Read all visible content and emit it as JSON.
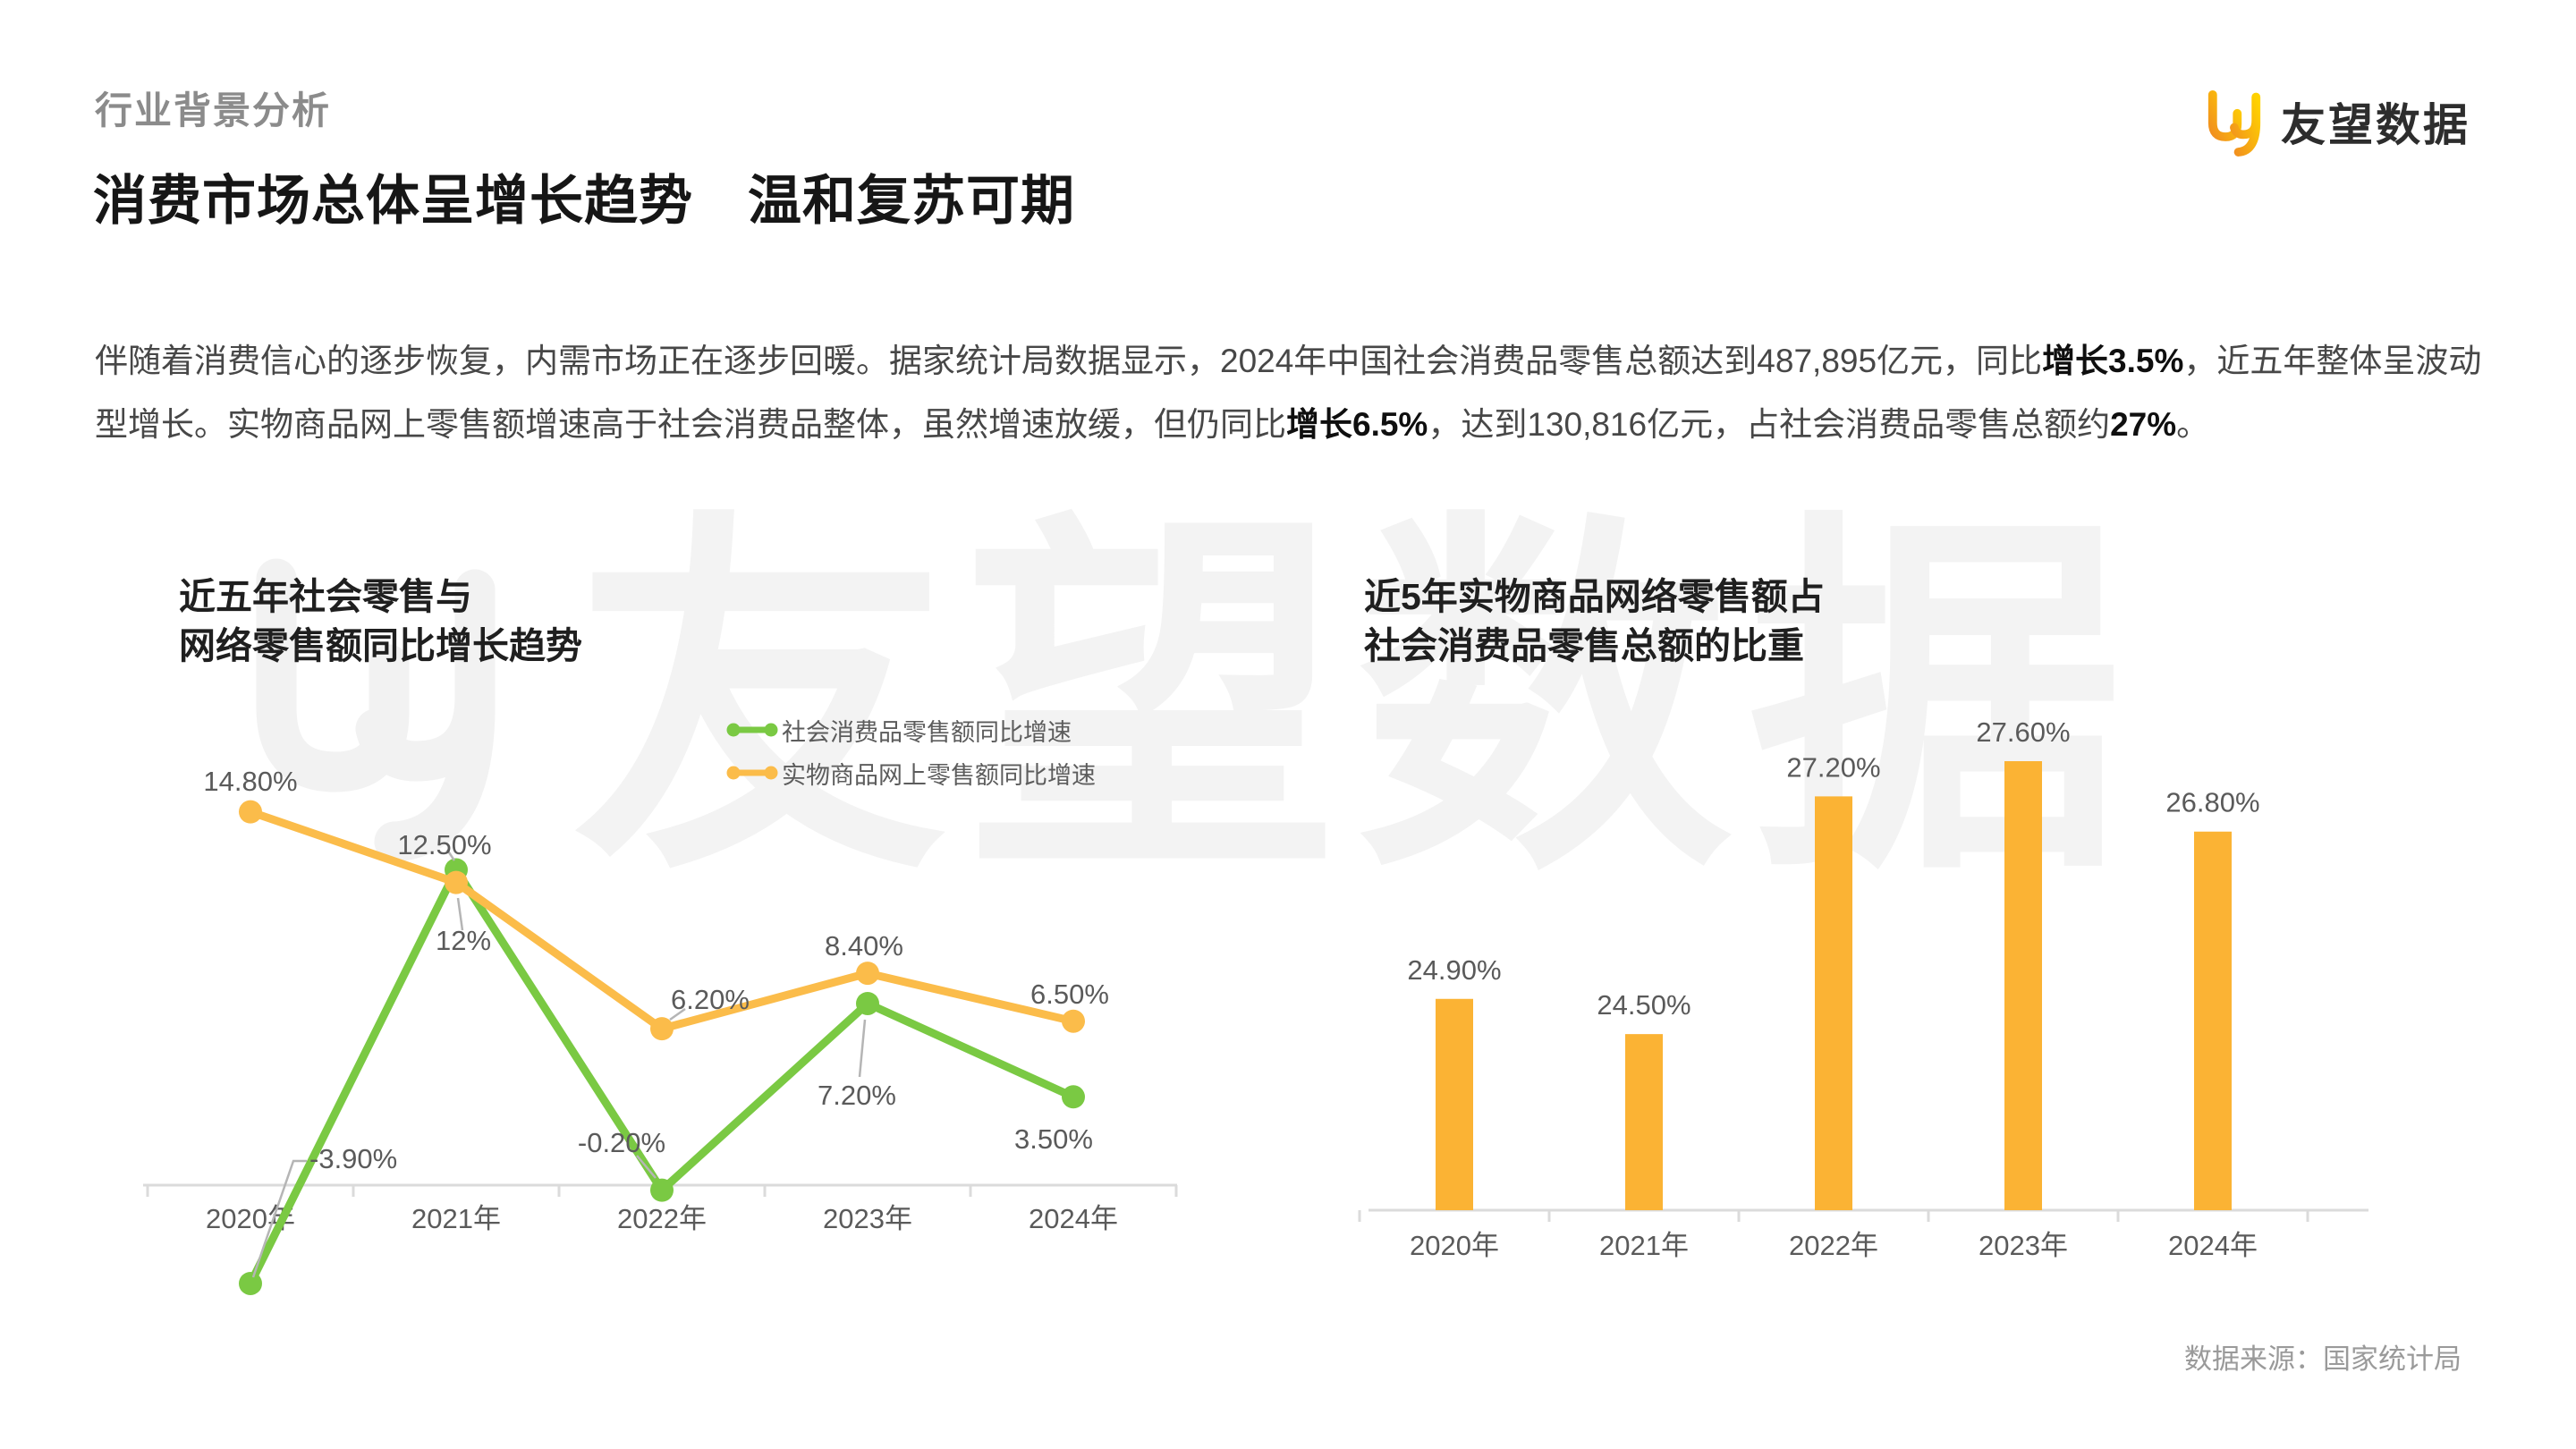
{
  "page": {
    "section_label": "行业背景分析",
    "title": "消费市场总体呈增长趋势　温和复苏可期",
    "source_note": "数据来源：国家统计局"
  },
  "logo": {
    "text": "友望数据"
  },
  "watermark": {
    "text": "友望数据"
  },
  "paragraph": {
    "segments": [
      {
        "text": "伴随着消费信心的逐步恢复，内需市场正在逐步回暖。据家统计局数据显示，2024年中国社会消费品零售总额达到487,895亿元，同比",
        "bold": false
      },
      {
        "text": "增长3.5%",
        "bold": true
      },
      {
        "text": "，近五年整体呈波动型增长。实物商品网上零售额增速高于社会消费品整体，虽然增速放缓，但仍同比",
        "bold": false
      },
      {
        "text": "增长6.5%",
        "bold": true
      },
      {
        "text": "，达到130,816亿元，占社会消费品零售总额约",
        "bold": false
      },
      {
        "text": "27%",
        "bold": true
      },
      {
        "text": "。",
        "bold": false
      }
    ]
  },
  "colors": {
    "green_series": "#7AC943",
    "orange_series": "#FBBC4A",
    "bar_fill": "#FBB334",
    "axis": "#dbdbdb",
    "leader_line": "#b5b5b5",
    "data_label": "#5a5a5a"
  },
  "chart_data": [
    {
      "type": "line",
      "title": "近五年社会零售与\n网络零售额同比增长趋势",
      "categories": [
        "2020年",
        "2021年",
        "2022年",
        "2023年",
        "2024年"
      ],
      "series": [
        {
          "name": "社会消费品零售额同比增速",
          "color": "#7AC943",
          "values": [
            -3.9,
            12.5,
            -0.2,
            7.2,
            3.5
          ],
          "labels": [
            "-3.90%",
            "12.50%",
            "-0.20%",
            "7.20%",
            "3.50%"
          ]
        },
        {
          "name": "实物商品网上零售额同比增速",
          "color": "#FBBC4A",
          "values": [
            14.8,
            12,
            6.2,
            8.4,
            6.5
          ],
          "labels": [
            "14.80%",
            "12%",
            "6.20%",
            "8.40%",
            "6.50%"
          ]
        }
      ],
      "xlabel": "",
      "ylabel": "",
      "ylim": [
        -6,
        16
      ],
      "grid": false,
      "legend_position": "top"
    },
    {
      "type": "bar",
      "title": "近5年实物商品网络零售额占\n社会消费品零售总额的比重",
      "categories": [
        "2020年",
        "2021年",
        "2022年",
        "2023年",
        "2024年"
      ],
      "values": [
        24.9,
        24.5,
        27.2,
        27.6,
        26.8
      ],
      "labels": [
        "24.90%",
        "24.50%",
        "27.20%",
        "27.60%",
        "26.80%"
      ],
      "xlabel": "",
      "ylabel": "",
      "ylim": [
        22.5,
        28
      ],
      "grid": false
    }
  ]
}
